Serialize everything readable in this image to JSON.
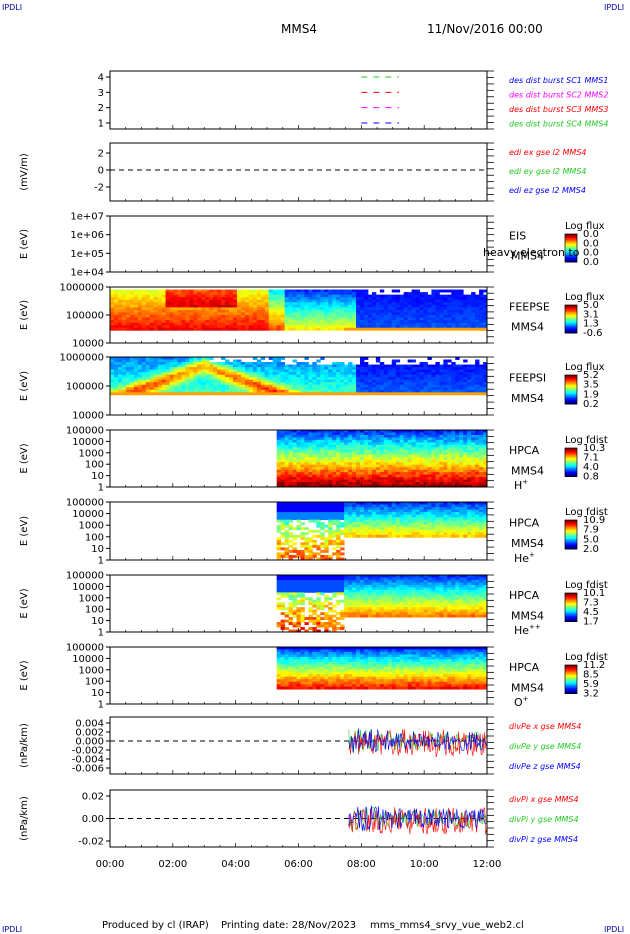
{
  "corners": {
    "label": "IPDLI"
  },
  "header": {
    "spacecraft": "MMS4",
    "datetime": "11/Nov/2016 00:00"
  },
  "footer": {
    "produced": "Produced by cl (IRAP)",
    "printing": "Printing date: 28/Nov/2023",
    "file": "mms_mms4_srvy_vue_web2.cl"
  },
  "colors": {
    "black": "#000000",
    "red": "#ff0000",
    "green": "#22cc22",
    "blue": "#0000ff",
    "magenta": "#ff00ff"
  },
  "chart_data": [
    {
      "type": "line",
      "id": "burst",
      "yticks": [
        "1",
        "2",
        "3",
        "4"
      ],
      "legend": [
        {
          "name": "des dist burst SC1 MMS1",
          "color": "#0000ff"
        },
        {
          "name": "des dist burst SC2 MMS2",
          "color": "#ff00ff"
        },
        {
          "name": "des dist burst SC3 MMS3",
          "color": "#ff0000"
        },
        {
          "name": "des dist burst SC4 MMS4",
          "color": "#22cc22"
        }
      ],
      "segments": [
        {
          "y": 4,
          "x": [
            8.0,
            9.2
          ],
          "color": "#22cc22"
        },
        {
          "y": 3,
          "x": [
            8.0,
            9.2
          ],
          "color": "#ff0000"
        },
        {
          "y": 2,
          "x": [
            8.0,
            9.2
          ],
          "color": "#ff00ff"
        },
        {
          "y": 1,
          "x": [
            8.0,
            9.2
          ],
          "color": "#0000ff"
        }
      ]
    },
    {
      "type": "line",
      "id": "edi",
      "ylabel": "(mV/m)",
      "yticks": [
        "2",
        "0",
        "-2"
      ],
      "legend": [
        {
          "name": "edi ex gse l2 MMS4",
          "color": "#ff0000"
        },
        {
          "name": "edi ey gse l2 MMS4",
          "color": "#22cc22"
        },
        {
          "name": "edi ez gse l2 MMS4",
          "color": "#0000ff"
        }
      ]
    },
    {
      "type": "heatmap",
      "id": "eis",
      "ylabel": "E (eV)",
      "yticks": [
        "1e+07",
        "1e+06",
        "1e+05",
        "1e+04"
      ],
      "instrument": "EIS",
      "overlay": "heavy electron to",
      "craft": "MMS4",
      "cbar_title": "Log flux",
      "cbar": [
        "0.0",
        "0.0",
        "0.0",
        "0.0"
      ]
    },
    {
      "type": "heatmap",
      "id": "feepse",
      "ylabel": "E (eV)",
      "yticks": [
        "1000000",
        "100000",
        "10000"
      ],
      "instrument": "FEEPSE",
      "craft": "MMS4",
      "cbar_title": "Log flux",
      "cbar": [
        "5.0",
        "3.1",
        "1.3",
        "-0.6"
      ]
    },
    {
      "type": "heatmap",
      "id": "feepsi",
      "ylabel": "E (eV)",
      "yticks": [
        "1000000",
        "100000",
        "10000"
      ],
      "instrument": "FEEPSI",
      "craft": "MMS4",
      "cbar_title": "Log flux",
      "cbar": [
        "5.2",
        "3.5",
        "1.9",
        "0.2"
      ]
    },
    {
      "type": "heatmap",
      "id": "hpcah",
      "ylabel": "E (eV)",
      "yticks": [
        "100000",
        "10000",
        "1000",
        "100",
        "10",
        "1"
      ],
      "instrument": "HPCA",
      "craft": "MMS4",
      "species": "H",
      "charge": "+",
      "cbar_title": "Log fdist",
      "cbar": [
        "10.3",
        "7.1",
        "4.0",
        "0.8"
      ]
    },
    {
      "type": "heatmap",
      "id": "hpcahe1",
      "ylabel": "E (eV)",
      "yticks": [
        "100000",
        "10000",
        "1000",
        "100",
        "10",
        "1"
      ],
      "instrument": "HPCA",
      "craft": "MMS4",
      "species": "He",
      "charge": "+",
      "cbar_title": "Log fdist",
      "cbar": [
        "10.9",
        "7.9",
        "5.0",
        "2.0"
      ]
    },
    {
      "type": "heatmap",
      "id": "hpcahe2",
      "ylabel": "E (eV)",
      "yticks": [
        "100000",
        "10000",
        "1000",
        "100",
        "10",
        "1"
      ],
      "instrument": "HPCA",
      "craft": "MMS4",
      "species": "He",
      "charge": "++",
      "cbar_title": "Log fdist",
      "cbar": [
        "10.1",
        "7.3",
        "4.5",
        "1.7"
      ]
    },
    {
      "type": "heatmap",
      "id": "hpcao",
      "ylabel": "E (eV)",
      "yticks": [
        "100000",
        "10000",
        "1000",
        "100",
        "10",
        "1"
      ],
      "instrument": "HPCA",
      "craft": "MMS4",
      "species": "O",
      "charge": "+",
      "cbar_title": "Log fdist",
      "cbar": [
        "11.2",
        "8.5",
        "5.9",
        "3.2"
      ]
    },
    {
      "type": "line",
      "id": "divpe",
      "ylabel": "(nPa/km)",
      "yticks": [
        "0.004",
        "0.002",
        "0.000",
        "-0.002",
        "-0.004",
        "-0.006"
      ],
      "legend": [
        {
          "name": "divPe x gse MMS4",
          "color": "#ff0000"
        },
        {
          "name": "divPe y gse MMS4",
          "color": "#22cc22"
        },
        {
          "name": "divPe z gse MMS4",
          "color": "#0000ff"
        }
      ]
    },
    {
      "type": "line",
      "id": "divpi",
      "ylabel": "(nPa/km)",
      "yticks": [
        "0.02",
        "0.00",
        "-0.02"
      ],
      "legend": [
        {
          "name": "divPi x gse MMS4",
          "color": "#ff0000"
        },
        {
          "name": "divPi y gse MMS4",
          "color": "#22cc22"
        },
        {
          "name": "divPi z gse MMS4",
          "color": "#0000ff"
        }
      ]
    }
  ],
  "xaxis": {
    "ticks": [
      "00:00",
      "02:00",
      "04:00",
      "06:00",
      "08:00",
      "10:00",
      "12:00"
    ],
    "range": [
      0,
      12
    ]
  }
}
